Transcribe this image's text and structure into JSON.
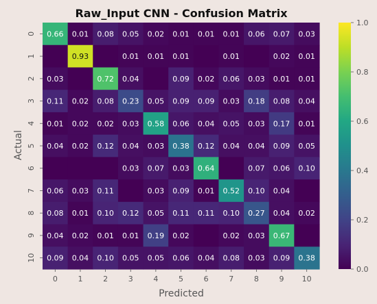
{
  "chart_data": {
    "type": "heatmap",
    "title": "Raw_Input CNN - Confusion Matrix",
    "xlabel": "Predicted",
    "ylabel": "Actual",
    "x_ticks": [
      "0",
      "1",
      "2",
      "3",
      "4",
      "5",
      "6",
      "7",
      "8",
      "9",
      "10"
    ],
    "y_ticks": [
      "0",
      "1",
      "2",
      "3",
      "4",
      "5",
      "6",
      "7",
      "8",
      "9",
      "10"
    ],
    "values": [
      [
        0.66,
        0.01,
        0.08,
        0.05,
        0.02,
        0.01,
        0.01,
        0.01,
        0.06,
        0.07,
        0.03
      ],
      [
        0.0,
        0.93,
        0.0,
        0.01,
        0.01,
        0.01,
        0.0,
        0.01,
        0.0,
        0.02,
        0.01
      ],
      [
        0.03,
        0.0,
        0.72,
        0.04,
        0.0,
        0.09,
        0.02,
        0.06,
        0.03,
        0.01,
        0.01
      ],
      [
        0.11,
        0.02,
        0.08,
        0.23,
        0.05,
        0.09,
        0.09,
        0.03,
        0.18,
        0.08,
        0.04
      ],
      [
        0.01,
        0.02,
        0.02,
        0.03,
        0.58,
        0.06,
        0.04,
        0.05,
        0.03,
        0.17,
        0.01
      ],
      [
        0.04,
        0.02,
        0.12,
        0.04,
        0.03,
        0.38,
        0.12,
        0.04,
        0.04,
        0.09,
        0.05
      ],
      [
        0.0,
        0.0,
        0.0,
        0.03,
        0.07,
        0.03,
        0.64,
        0.0,
        0.07,
        0.06,
        0.1
      ],
      [
        0.06,
        0.03,
        0.11,
        0.0,
        0.03,
        0.09,
        0.01,
        0.52,
        0.1,
        0.04,
        0.0
      ],
      [
        0.08,
        0.01,
        0.1,
        0.12,
        0.05,
        0.11,
        0.11,
        0.1,
        0.27,
        0.04,
        0.02
      ],
      [
        0.04,
        0.02,
        0.01,
        0.01,
        0.19,
        0.02,
        0.0,
        0.02,
        0.03,
        0.67,
        0.0
      ],
      [
        0.09,
        0.04,
        0.1,
        0.05,
        0.05,
        0.06,
        0.04,
        0.08,
        0.03,
        0.09,
        0.38
      ]
    ],
    "cell_labels": [
      [
        "0.66",
        "0.01",
        "0.08",
        "0.05",
        "0.02",
        "0.01",
        "0.01",
        "0.01",
        "0.06",
        "0.07",
        "0.03"
      ],
      [
        "",
        "0.93",
        "",
        "0.01",
        "0.01",
        "0.01",
        "",
        "0.01",
        "",
        "0.02",
        "0.01"
      ],
      [
        "0.03",
        "",
        "0.72",
        "0.04",
        "",
        "0.09",
        "0.02",
        "0.06",
        "0.03",
        "0.01",
        "0.01"
      ],
      [
        "0.11",
        "0.02",
        "0.08",
        "0.23",
        "0.05",
        "0.09",
        "0.09",
        "0.03",
        "0.18",
        "0.08",
        "0.04"
      ],
      [
        "0.01",
        "0.02",
        "0.02",
        "0.03",
        "0.58",
        "0.06",
        "0.04",
        "0.05",
        "0.03",
        "0.17",
        "0.01"
      ],
      [
        "0.04",
        "0.02",
        "0.12",
        "0.04",
        "0.03",
        "0.38",
        "0.12",
        "0.04",
        "0.04",
        "0.09",
        "0.05"
      ],
      [
        "",
        "",
        "",
        "0.03",
        "0.07",
        "0.03",
        "0.64",
        "",
        "0.07",
        "0.06",
        "0.10"
      ],
      [
        "0.06",
        "0.03",
        "0.11",
        "",
        "0.03",
        "0.09",
        "0.01",
        "0.52",
        "0.10",
        "0.04",
        ""
      ],
      [
        "0.08",
        "0.01",
        "0.10",
        "0.12",
        "0.05",
        "0.11",
        "0.11",
        "0.10",
        "0.27",
        "0.04",
        "0.02"
      ],
      [
        "0.04",
        "0.02",
        "0.01",
        "0.01",
        "0.19",
        "0.02",
        "",
        "0.02",
        "0.03",
        "0.67",
        ""
      ],
      [
        "0.09",
        "0.04",
        "0.10",
        "0.05",
        "0.05",
        "0.06",
        "0.04",
        "0.08",
        "0.03",
        "0.09",
        "0.38"
      ]
    ],
    "vmin": 0.0,
    "vmax": 1.0,
    "colormap": "viridis",
    "colorbar_ticks": [
      "0.0",
      "0.2",
      "0.4",
      "0.6",
      "0.8",
      "1.0"
    ],
    "colorbar_values": [
      0.0,
      0.2,
      0.4,
      0.6,
      0.8,
      1.0
    ],
    "background_color": "#efe6e2",
    "text_color_light": "#ffffff",
    "text_color_dark": "#111111"
  }
}
